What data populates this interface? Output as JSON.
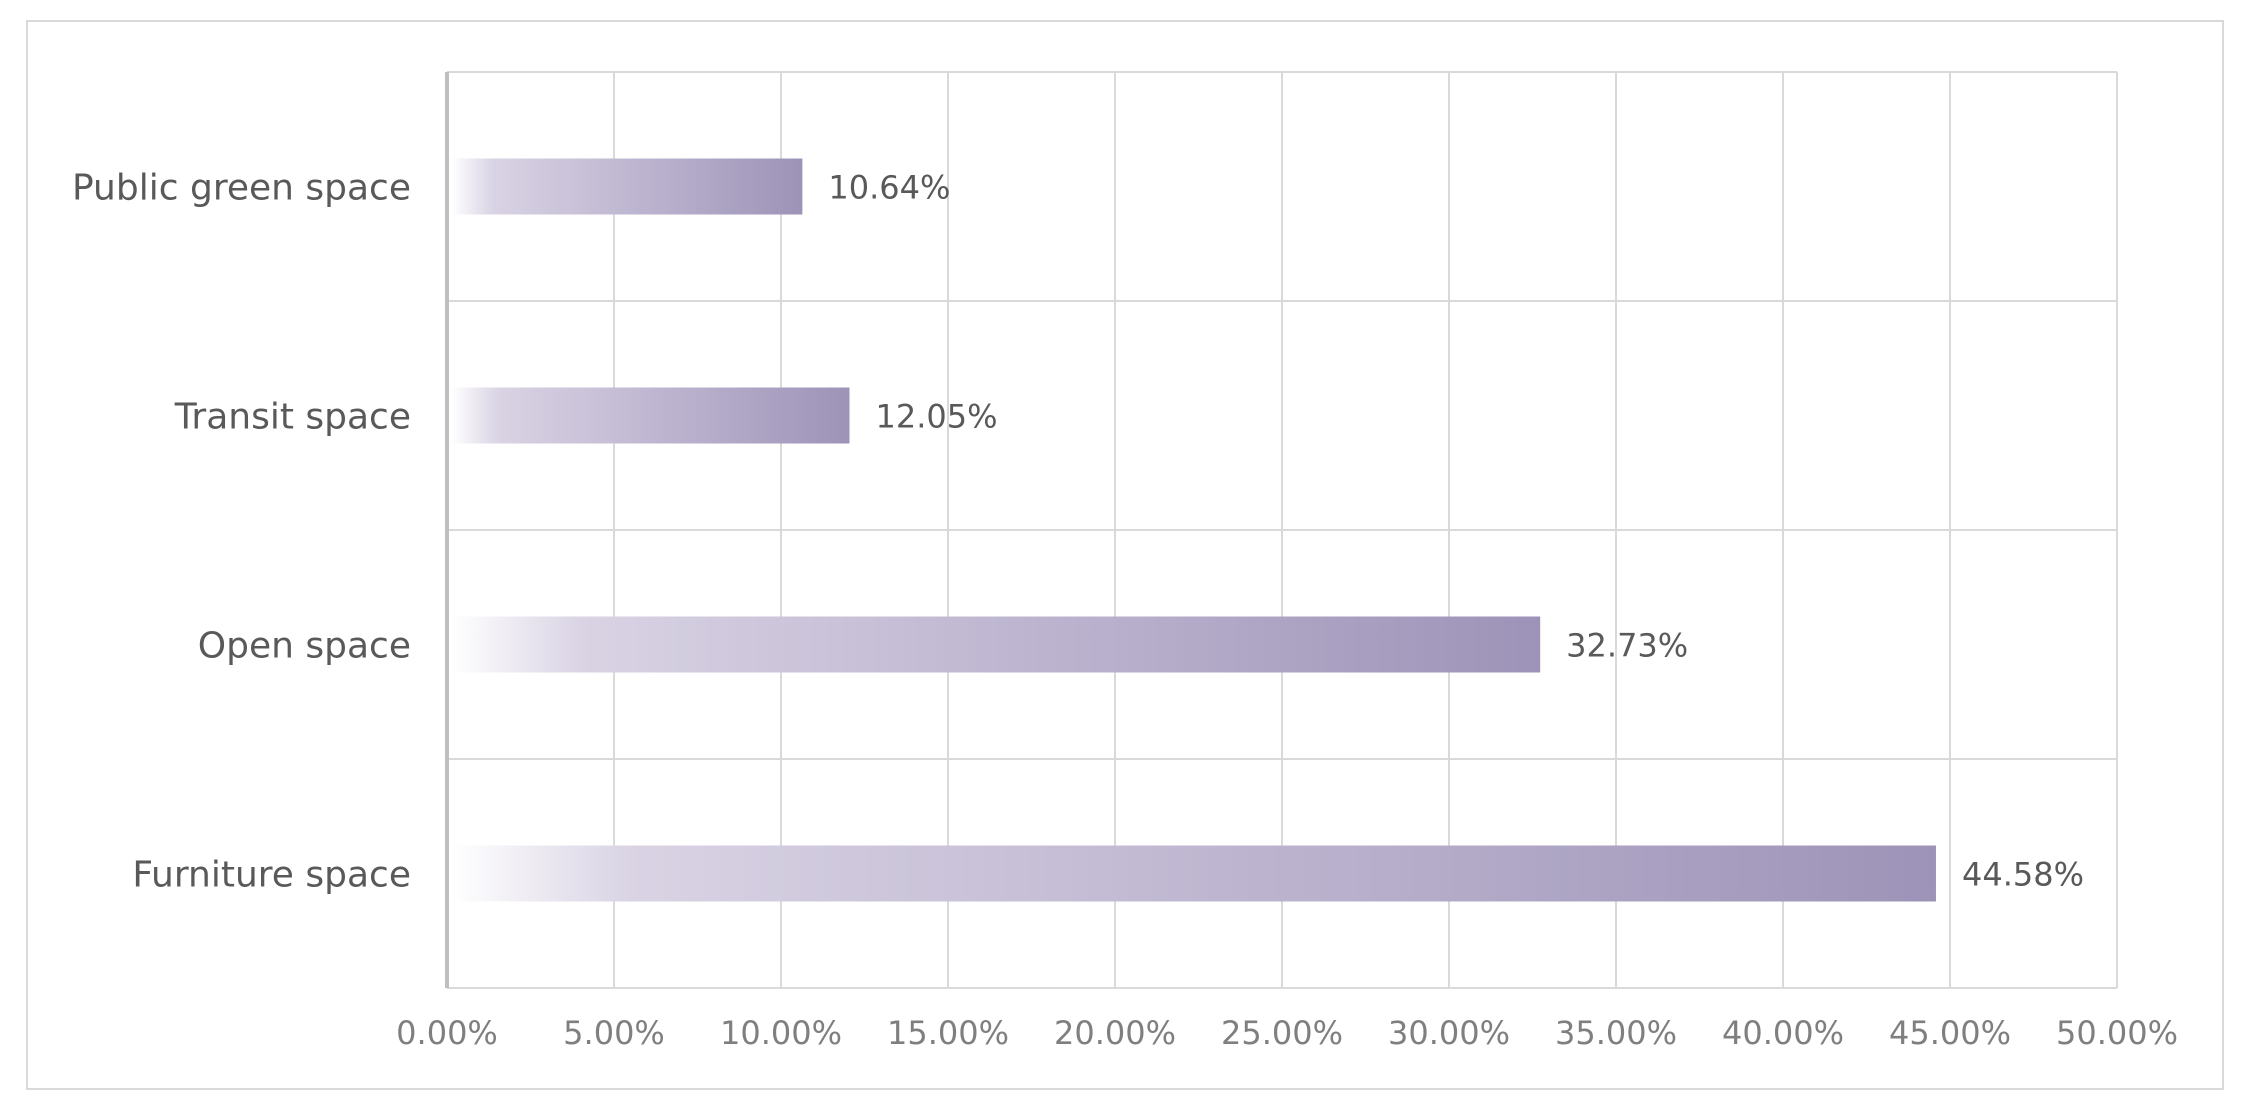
{
  "chart_data": {
    "type": "bar",
    "orientation": "horizontal",
    "categories": [
      "Public green space",
      "Transit space",
      "Open space",
      "Furniture space"
    ],
    "values": [
      10.64,
      12.05,
      32.73,
      44.58
    ],
    "value_labels": [
      "10.64%",
      "12.05%",
      "32.73%",
      "44.58%"
    ],
    "xlim": [
      0,
      50
    ],
    "xticks": [
      0,
      5,
      10,
      15,
      20,
      25,
      30,
      35,
      40,
      45,
      50
    ],
    "xtick_labels": [
      "0.00%",
      "5.00%",
      "10.00%",
      "15.00%",
      "20.00%",
      "25.00%",
      "30.00%",
      "35.00%",
      "40.00%",
      "45.00%",
      "50.00%"
    ],
    "grid": true,
    "legend": "none",
    "bar_color_start": "#ffffff",
    "bar_color_end": "#9d93b8",
    "title": "",
    "xlabel": "",
    "ylabel": ""
  }
}
